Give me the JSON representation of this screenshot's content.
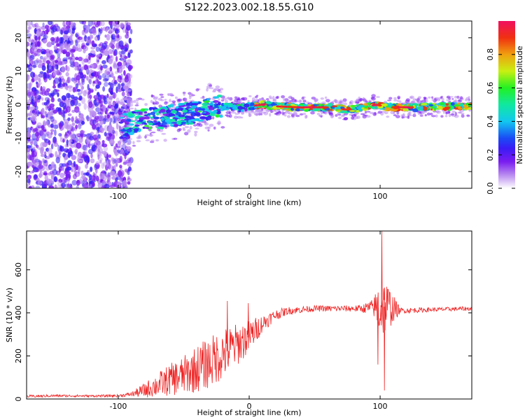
{
  "title": "S122.2023.002.18.55.G10",
  "chart_data": [
    {
      "type": "heatmap",
      "title": "S122.2023.002.18.55.G10",
      "xlabel": "Height of straight line (km)",
      "ylabel": "Frequency (Hz)",
      "xlim": [
        -170,
        170
      ],
      "ylim": [
        -25,
        25
      ],
      "xticks": [
        -100,
        0,
        100
      ],
      "yticks": [
        -20,
        -10,
        0,
        10,
        20
      ],
      "colorbar": {
        "label": "Normalized spectral amplitude",
        "range": [
          0,
          1
        ],
        "ticks": [
          "0.0",
          "0.2",
          "0.4",
          "0.6",
          "0.8"
        ],
        "colors": [
          "#ffffff",
          "#b98bf0",
          "#7a1cf0",
          "#3a1cf5",
          "#1a4cf5",
          "#12c8f0",
          "#10e8a0",
          "#22f022",
          "#c8f012",
          "#f0a010",
          "#f03010",
          "#f01060"
        ]
      },
      "ridge": {
        "x": [
          -95,
          -80,
          -60,
          -45,
          -35,
          -25,
          -15,
          -8,
          0,
          10,
          20,
          40,
          60,
          75,
          85,
          92,
          97,
          102,
          110,
          130,
          150,
          170
        ],
        "y": [
          -6,
          -4.5,
          -3.5,
          -2.5,
          -1.5,
          -0.5,
          -0.5,
          -1.0,
          -0.5,
          0.0,
          -0.5,
          -0.8,
          -0.8,
          -1.5,
          -1.0,
          -0.5,
          0.0,
          -0.5,
          -0.8,
          -0.8,
          -0.5,
          -0.5
        ]
      }
    },
    {
      "type": "line",
      "xlabel": "Height of straight line (km)",
      "ylabel": "SNR (10 * v/v)",
      "xlim": [
        -170,
        170
      ],
      "ylim": [
        0,
        780
      ],
      "xticks": [
        -100,
        0,
        100
      ],
      "yticks": [
        0,
        200,
        400,
        600
      ],
      "color": "#ee2222",
      "envelope": {
        "x": [
          -170,
          -150,
          -120,
          -100,
          -90,
          -80,
          -70,
          -60,
          -50,
          -40,
          -30,
          -20,
          -10,
          0,
          10,
          20,
          30,
          50,
          70,
          85,
          95,
          100,
          105,
          115,
          140,
          170
        ],
        "y": [
          12,
          15,
          14,
          15,
          22,
          40,
          65,
          90,
          110,
          140,
          170,
          210,
          250,
          290,
          350,
          390,
          410,
          420,
          420,
          420,
          425,
          425,
          430,
          410,
          415,
          420
        ],
        "noise": [
          6,
          6,
          5,
          6,
          10,
          35,
          55,
          75,
          90,
          110,
          120,
          120,
          100,
          80,
          40,
          25,
          18,
          14,
          14,
          16,
          40,
          160,
          120,
          14,
          10,
          10
        ]
      },
      "spikes": [
        {
          "x": -17,
          "y": 455
        },
        {
          "x": -1,
          "y": 445
        },
        {
          "x": 101,
          "y": 780
        },
        {
          "x": 103,
          "y": 40
        },
        {
          "x": 98,
          "y": 160
        }
      ]
    }
  ]
}
